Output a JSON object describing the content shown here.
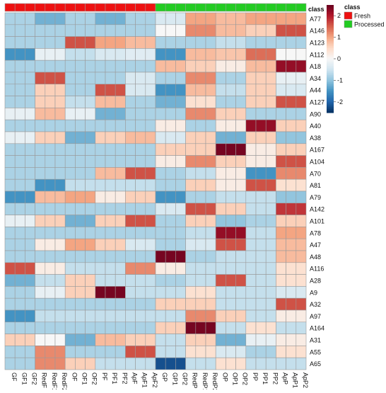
{
  "chart_data": {
    "type": "heatmap",
    "annotation": {
      "label": "class",
      "legend_title": "class",
      "legend_entries": [
        {
          "name": "Fresh",
          "color": "#ee1111"
        },
        {
          "name": "Processed",
          "color": "#22cc22"
        }
      ],
      "column_classes": [
        "Fresh",
        "Fresh",
        "Fresh",
        "Fresh",
        "Fresh",
        "Fresh",
        "Fresh",
        "Fresh",
        "Fresh",
        "Fresh",
        "Fresh",
        "Fresh",
        "Fresh",
        "Fresh",
        "Fresh",
        "Processed",
        "Processed",
        "Processed",
        "Processed",
        "Processed",
        "Processed",
        "Processed",
        "Processed",
        "Processed",
        "Processed",
        "Processed",
        "Processed",
        "Processed",
        "Processed",
        "Processed"
      ]
    },
    "colorbar": {
      "ticks": [
        2,
        1,
        0,
        -1,
        -2
      ],
      "range": [
        -2.5,
        2.5
      ],
      "colors": [
        "#053061",
        "#2166ac",
        "#4393c3",
        "#92c5de",
        "#d1e5f0",
        "#f7f7f7",
        "#fddbc7",
        "#f4a582",
        "#d6604d",
        "#b2182b",
        "#67001f"
      ]
    },
    "columns": [
      "GF",
      "GF1",
      "GF2",
      "RedF",
      "RedF1",
      "RedF2",
      "OF",
      "OF1",
      "OF2",
      "PF",
      "PF1",
      "PF2",
      "ApF",
      "ApF1",
      "ApF2",
      "GP",
      "GP1",
      "GP2",
      "RedP",
      "RedP1",
      "RedP2",
      "OP",
      "OP1",
      "OP2",
      "PP",
      "PP1",
      "PP2",
      "ApP",
      "ApP1",
      "ApP2"
    ],
    "rows": [
      "A77",
      "A146",
      "A123",
      "A112",
      "A18",
      "A34",
      "A44",
      "A127",
      "A90",
      "A40",
      "A38",
      "A167",
      "A104",
      "A70",
      "A81",
      "A79",
      "A142",
      "A101",
      "A78",
      "A47",
      "A48",
      "A116",
      "A28",
      "A9",
      "A32",
      "A97",
      "A164",
      "A31",
      "A55",
      "A65"
    ],
    "values": [
      [
        -0.8,
        -0.8,
        -0.8,
        -1.2,
        -1.2,
        -1.2,
        -0.8,
        -0.8,
        -0.8,
        -1.2,
        -1.2,
        -1.2,
        -0.8,
        -0.8,
        -0.8,
        -0.4,
        -0.4,
        -0.4,
        1.0,
        1.0,
        1.0,
        0.8,
        0.8,
        0.8,
        1.0,
        1.0,
        1.0,
        1.0,
        1.0,
        1.0
      ],
      [
        -0.8,
        -0.8,
        -0.8,
        -0.8,
        -0.8,
        -0.8,
        -0.8,
        -0.8,
        -0.8,
        -0.8,
        -0.8,
        -0.8,
        -0.8,
        -0.8,
        -0.8,
        0.0,
        0.0,
        0.0,
        1.2,
        1.2,
        1.2,
        0.8,
        0.8,
        0.8,
        0.6,
        0.6,
        0.6,
        1.6,
        1.6,
        1.6
      ],
      [
        -0.8,
        -0.8,
        -0.8,
        -0.8,
        -0.8,
        -0.8,
        1.6,
        1.6,
        1.6,
        1.0,
        1.0,
        1.0,
        0.8,
        0.8,
        0.8,
        -0.8,
        -0.8,
        -0.8,
        -0.8,
        -0.8,
        -0.8,
        -0.6,
        -0.6,
        -0.6,
        -0.8,
        -0.8,
        -0.8,
        -0.8,
        -0.8,
        -0.8
      ],
      [
        -1.5,
        -1.5,
        -1.5,
        -0.2,
        -0.2,
        -0.2,
        -0.6,
        -0.6,
        -0.6,
        -0.4,
        -0.4,
        -0.4,
        -0.3,
        -0.3,
        -0.3,
        -1.5,
        -1.5,
        -1.5,
        0.8,
        0.8,
        0.8,
        0.7,
        0.7,
        0.7,
        1.4,
        1.4,
        1.4,
        0.0,
        0.0,
        0.0
      ],
      [
        -0.8,
        -0.8,
        -0.8,
        -0.8,
        -0.8,
        -0.8,
        -0.8,
        -0.8,
        -0.8,
        -0.8,
        -0.8,
        -0.8,
        -0.8,
        -0.8,
        -0.8,
        0.8,
        0.8,
        0.8,
        0.6,
        0.6,
        0.6,
        0.2,
        0.2,
        0.2,
        0.8,
        0.8,
        0.8,
        2.2,
        2.2,
        2.2
      ],
      [
        -0.8,
        -0.8,
        -0.8,
        1.6,
        1.6,
        1.6,
        -0.8,
        -0.8,
        -0.8,
        -0.8,
        -0.8,
        -0.8,
        -0.4,
        -0.4,
        -0.4,
        -0.8,
        -0.8,
        -0.8,
        1.2,
        1.2,
        1.2,
        -0.8,
        -0.8,
        -0.8,
        0.6,
        0.6,
        0.6,
        -0.2,
        -0.2,
        -0.2
      ],
      [
        -0.8,
        -0.8,
        -0.8,
        0.6,
        0.6,
        0.6,
        -0.8,
        -0.8,
        -0.8,
        1.6,
        1.6,
        1.6,
        -0.4,
        -0.4,
        -0.4,
        -1.5,
        -1.5,
        -1.5,
        0.8,
        0.8,
        0.8,
        -0.6,
        -0.6,
        -0.6,
        0.6,
        0.6,
        0.6,
        -0.4,
        -0.4,
        -0.4
      ],
      [
        -0.8,
        -0.8,
        -0.8,
        0.6,
        0.6,
        0.6,
        -0.6,
        -0.6,
        -0.6,
        0.8,
        0.8,
        0.8,
        -0.8,
        -0.8,
        -0.8,
        -1.2,
        -1.2,
        -1.2,
        0.4,
        0.4,
        0.4,
        -0.8,
        -0.8,
        -0.8,
        0.6,
        0.6,
        0.6,
        1.6,
        1.6,
        1.6
      ],
      [
        -0.2,
        -0.2,
        -0.2,
        0.8,
        0.8,
        0.8,
        -0.2,
        -0.2,
        -0.2,
        -1.2,
        -1.2,
        -1.2,
        -0.8,
        -0.8,
        -0.8,
        -0.8,
        -0.8,
        -0.8,
        1.2,
        1.2,
        1.2,
        0.6,
        0.6,
        0.6,
        -0.8,
        -0.8,
        -0.8,
        -0.8,
        -0.8,
        -0.8
      ],
      [
        -0.8,
        -0.8,
        -0.8,
        -0.8,
        -0.8,
        -0.8,
        -0.8,
        -0.8,
        -0.8,
        -0.8,
        -0.8,
        -0.8,
        -0.8,
        -0.8,
        -0.8,
        0.2,
        0.2,
        0.2,
        -0.8,
        -0.8,
        -0.8,
        0.2,
        0.2,
        0.2,
        2.2,
        2.2,
        2.2,
        0.6,
        0.6,
        0.6
      ],
      [
        -0.2,
        -0.2,
        -0.2,
        0.6,
        0.6,
        0.6,
        -1.2,
        -1.2,
        -1.2,
        0.6,
        0.6,
        0.6,
        0.8,
        0.8,
        0.8,
        -0.4,
        -0.4,
        -0.4,
        0.6,
        0.6,
        0.6,
        -1.2,
        -1.2,
        -1.2,
        0.6,
        0.6,
        0.6,
        -1.0,
        -1.0,
        -1.0
      ],
      [
        -0.8,
        -0.8,
        -0.8,
        -0.8,
        -0.8,
        -0.8,
        -0.8,
        -0.8,
        -0.8,
        -0.8,
        -0.8,
        -0.8,
        -0.8,
        -0.8,
        -0.8,
        0.6,
        0.6,
        0.6,
        0.6,
        0.6,
        0.6,
        2.4,
        2.4,
        2.4,
        0.2,
        0.2,
        0.2,
        0.6,
        0.6,
        0.6
      ],
      [
        -0.8,
        -0.8,
        -0.8,
        -0.8,
        -0.8,
        -0.8,
        -0.8,
        -0.8,
        -0.8,
        -0.8,
        -0.8,
        -0.8,
        -0.8,
        -0.8,
        -0.8,
        0.2,
        0.2,
        0.2,
        1.2,
        1.2,
        1.2,
        0.6,
        0.6,
        0.6,
        0.2,
        0.2,
        0.2,
        1.6,
        1.6,
        1.6
      ],
      [
        -0.8,
        -0.8,
        -0.8,
        -0.8,
        -0.8,
        -0.8,
        -0.8,
        -0.8,
        -0.8,
        0.8,
        0.8,
        0.8,
        1.6,
        1.6,
        1.6,
        -0.8,
        -0.8,
        -0.8,
        -0.6,
        -0.6,
        -0.6,
        0.2,
        0.2,
        0.2,
        -1.5,
        -1.5,
        -1.5,
        1.2,
        1.2,
        1.2
      ],
      [
        -0.8,
        -0.8,
        -0.8,
        -1.5,
        -1.5,
        -1.5,
        -0.6,
        -0.6,
        -0.6,
        -0.6,
        -0.6,
        -0.6,
        -0.6,
        -0.6,
        -0.6,
        -0.8,
        -0.8,
        -0.8,
        0.6,
        0.6,
        0.6,
        0.2,
        0.2,
        0.2,
        1.6,
        1.6,
        1.6,
        0.4,
        0.4,
        0.4
      ],
      [
        -1.5,
        -1.5,
        -1.5,
        0.8,
        0.8,
        0.8,
        1.0,
        1.0,
        1.0,
        0.2,
        0.2,
        0.2,
        0.6,
        0.6,
        0.6,
        -1.5,
        -1.5,
        -1.5,
        -0.8,
        -0.8,
        -0.8,
        -0.6,
        -0.6,
        -0.6,
        -0.6,
        -0.6,
        -0.6,
        -1.0,
        -1.0,
        -1.0
      ],
      [
        -0.8,
        -0.8,
        -0.8,
        -0.8,
        -0.8,
        -0.8,
        -0.8,
        -0.8,
        -0.8,
        -0.8,
        -0.8,
        -0.8,
        -0.8,
        -0.8,
        -0.8,
        -0.4,
        -0.4,
        -0.4,
        1.6,
        1.6,
        1.6,
        0.6,
        0.6,
        0.6,
        -0.6,
        -0.6,
        -0.6,
        1.8,
        1.8,
        1.8
      ],
      [
        -0.2,
        -0.2,
        -0.2,
        0.6,
        0.6,
        0.6,
        -1.2,
        -1.2,
        -1.2,
        0.6,
        0.6,
        0.6,
        1.6,
        1.6,
        1.6,
        -0.8,
        -0.8,
        -0.8,
        0.6,
        0.6,
        0.6,
        -1.0,
        -1.0,
        -1.0,
        -0.8,
        -0.8,
        -0.8,
        0.6,
        0.6,
        0.6
      ],
      [
        -0.8,
        -0.8,
        -0.8,
        -0.8,
        -0.8,
        -0.8,
        -0.8,
        -0.8,
        -0.8,
        -0.8,
        -0.8,
        -0.8,
        -0.8,
        -0.8,
        -0.8,
        -0.8,
        -0.8,
        -0.8,
        -0.6,
        -0.6,
        -0.6,
        2.2,
        2.2,
        2.2,
        -0.6,
        -0.6,
        -0.6,
        1.0,
        1.0,
        1.0
      ],
      [
        -0.8,
        -0.8,
        -0.8,
        0.2,
        0.2,
        0.2,
        1.0,
        1.0,
        1.0,
        0.6,
        0.6,
        0.6,
        -0.4,
        -0.4,
        -0.4,
        -0.8,
        -0.8,
        -0.8,
        -0.4,
        -0.4,
        -0.4,
        1.6,
        1.6,
        1.6,
        -0.6,
        -0.6,
        -0.6,
        0.8,
        0.8,
        0.8
      ],
      [
        -0.8,
        -0.8,
        -0.8,
        -0.8,
        -0.8,
        -0.8,
        -0.8,
        -0.8,
        -0.8,
        -0.8,
        -0.8,
        -0.8,
        -0.8,
        -0.8,
        -0.8,
        2.4,
        2.4,
        2.4,
        -0.8,
        -0.8,
        -0.8,
        -0.6,
        -0.6,
        -0.6,
        -0.6,
        -0.6,
        -0.6,
        0.8,
        0.8,
        0.8
      ],
      [
        1.6,
        1.6,
        1.6,
        0.2,
        0.2,
        0.2,
        -0.6,
        -0.6,
        -0.6,
        -0.6,
        -0.6,
        -0.6,
        1.2,
        1.2,
        1.2,
        0.2,
        0.2,
        0.2,
        -0.6,
        -0.6,
        -0.6,
        -0.6,
        -0.6,
        -0.6,
        -0.6,
        -0.6,
        -0.6,
        0.4,
        0.4,
        0.4
      ],
      [
        -1.2,
        -1.2,
        -1.2,
        -0.6,
        -0.6,
        -0.6,
        0.6,
        0.6,
        0.6,
        -0.6,
        -0.6,
        -0.6,
        -0.6,
        -0.6,
        -0.6,
        -0.8,
        -0.8,
        -0.8,
        -0.6,
        -0.6,
        -0.6,
        1.6,
        1.6,
        1.6,
        -0.6,
        -0.6,
        -0.6,
        0.4,
        0.4,
        0.4
      ],
      [
        -0.8,
        -0.8,
        -0.8,
        -0.2,
        -0.2,
        -0.2,
        0.6,
        0.6,
        0.6,
        2.4,
        2.4,
        2.4,
        -0.6,
        -0.6,
        -0.6,
        -0.6,
        -0.6,
        -0.6,
        0.4,
        0.4,
        0.4,
        -0.6,
        -0.6,
        -0.6,
        -0.6,
        -0.6,
        -0.6,
        -0.4,
        -0.4,
        -0.4
      ],
      [
        -0.8,
        -0.8,
        -0.8,
        -0.8,
        -0.8,
        -0.8,
        -0.8,
        -0.8,
        -0.8,
        -0.8,
        -0.8,
        -0.8,
        -0.8,
        -0.8,
        -0.8,
        0.6,
        0.6,
        0.6,
        0.6,
        0.6,
        0.6,
        -0.6,
        -0.6,
        -0.6,
        -0.6,
        -0.6,
        -0.6,
        1.6,
        1.6,
        1.6
      ],
      [
        -1.5,
        -1.5,
        -1.5,
        -0.6,
        -0.6,
        -0.6,
        -0.6,
        -0.6,
        -0.6,
        -0.6,
        -0.6,
        -0.6,
        -0.6,
        -0.6,
        -0.6,
        -0.6,
        -0.6,
        -0.6,
        1.2,
        1.2,
        1.2,
        0.6,
        0.6,
        0.6,
        -0.6,
        -0.6,
        -0.6,
        0.2,
        0.2,
        0.2
      ],
      [
        -0.8,
        -0.8,
        -0.8,
        -0.8,
        -0.8,
        -0.8,
        -0.8,
        -0.8,
        -0.8,
        -0.8,
        -0.8,
        -0.8,
        -0.8,
        -0.8,
        -0.8,
        0.6,
        0.6,
        0.6,
        2.4,
        2.4,
        2.4,
        -0.6,
        -0.6,
        -0.6,
        0.4,
        0.4,
        0.4,
        -0.6,
        -0.6,
        -0.6
      ],
      [
        0.6,
        0.6,
        0.6,
        0.0,
        0.0,
        0.0,
        -1.2,
        -1.2,
        -1.2,
        0.8,
        0.8,
        0.8,
        0.6,
        0.6,
        0.6,
        -0.6,
        -0.6,
        -0.6,
        0.6,
        0.6,
        0.6,
        -1.2,
        -1.2,
        -1.2,
        -0.2,
        -0.2,
        -0.2,
        0.2,
        0.2,
        0.2
      ],
      [
        -0.8,
        -0.8,
        -0.8,
        1.2,
        1.2,
        1.2,
        -0.8,
        -0.8,
        -0.8,
        -0.8,
        -0.8,
        -0.8,
        1.6,
        1.6,
        1.6,
        -0.6,
        -0.6,
        -0.6,
        0.4,
        0.4,
        0.4,
        -0.4,
        -0.4,
        -0.4,
        -0.8,
        -0.8,
        -0.8,
        0.4,
        0.4,
        0.4
      ],
      [
        -0.8,
        -0.8,
        -0.8,
        1.2,
        1.2,
        1.2,
        0.6,
        0.6,
        0.6,
        -0.6,
        -0.6,
        -0.6,
        -0.6,
        -0.6,
        -0.6,
        -2.2,
        -2.2,
        -2.2,
        -0.6,
        -0.6,
        -0.6,
        0.4,
        0.4,
        0.4,
        -0.6,
        -0.6,
        -0.6,
        -0.6,
        -0.6,
        -0.6
      ]
    ]
  }
}
